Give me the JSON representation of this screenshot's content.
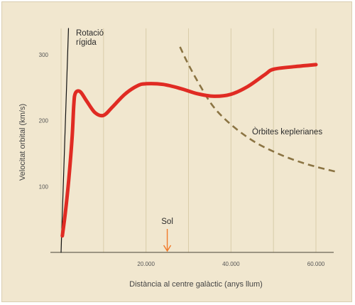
{
  "chart_data": {
    "type": "line",
    "title": "",
    "xlabel": "Distància al centre galàctic (anys llum)",
    "ylabel": "Velocitat orbital (km/s)",
    "xlim": [
      0,
      65000
    ],
    "ylim": [
      0,
      340
    ],
    "x_ticks": [
      {
        "value": 20000,
        "label": "20.000"
      },
      {
        "value": 40000,
        "label": "40.000"
      },
      {
        "value": 60000,
        "label": "60.000"
      }
    ],
    "y_ticks": [
      {
        "value": 100,
        "label": "100"
      },
      {
        "value": 200,
        "label": "200"
      },
      {
        "value": 300,
        "label": "300"
      }
    ],
    "grid_x": [
      0,
      10000,
      20000,
      30000,
      40000,
      50000,
      60000
    ],
    "grid_y": [
      0
    ],
    "series": [
      {
        "name": "",
        "style": "solid-thick",
        "color": "#e02b23",
        "points": [
          [
            300,
            25
          ],
          [
            1000,
            60
          ],
          [
            1800,
            110
          ],
          [
            2600,
            175
          ],
          [
            3000,
            225
          ],
          [
            3400,
            242
          ],
          [
            4500,
            244
          ],
          [
            6000,
            230
          ],
          [
            8000,
            212
          ],
          [
            10000,
            208
          ],
          [
            12000,
            220
          ],
          [
            15000,
            240
          ],
          [
            18000,
            253
          ],
          [
            20000,
            256
          ],
          [
            24000,
            255
          ],
          [
            28000,
            249
          ],
          [
            32000,
            241
          ],
          [
            36000,
            237
          ],
          [
            40000,
            240
          ],
          [
            44000,
            252
          ],
          [
            48000,
            270
          ],
          [
            50000,
            278
          ],
          [
            55000,
            282
          ],
          [
            60000,
            285
          ]
        ]
      },
      {
        "name": "",
        "style": "solid-thin",
        "color": "#111111",
        "points": [
          [
            0,
            0
          ],
          [
            1750,
            340
          ]
        ]
      },
      {
        "name": "",
        "style": "dashed",
        "color": "#8b7443",
        "points": [
          [
            28000,
            312
          ],
          [
            30000,
            285
          ],
          [
            33000,
            250
          ],
          [
            36000,
            220
          ],
          [
            40000,
            194
          ],
          [
            45000,
            170
          ],
          [
            50000,
            153
          ],
          [
            55000,
            140
          ],
          [
            60000,
            130
          ],
          [
            65000,
            122
          ]
        ]
      }
    ],
    "annotations": [
      {
        "id": "rigid",
        "lines": [
          "Rotació",
          "rígida"
        ]
      },
      {
        "id": "kepler",
        "lines": [
          "Òrbites keplerianes"
        ]
      },
      {
        "id": "sun",
        "lines": [
          "Sol"
        ],
        "x": 25000,
        "color": "#f07a2a"
      }
    ]
  }
}
